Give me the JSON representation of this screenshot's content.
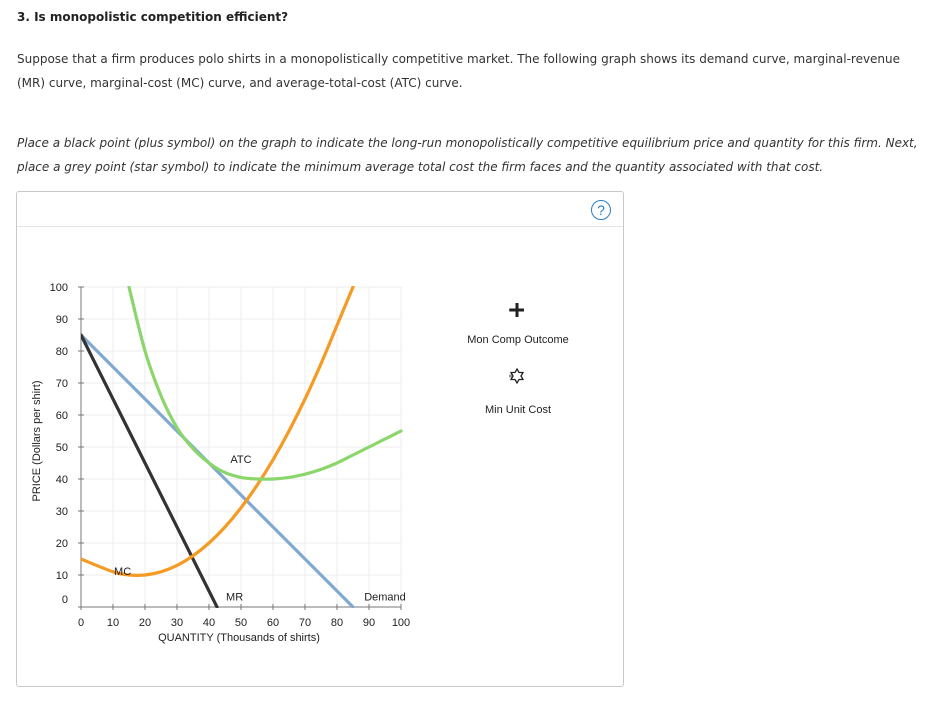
{
  "question": {
    "title": "3. Is monopolistic competition efficient?",
    "intro": "Suppose that a firm produces polo shirts in a monopolistically competitive market. The following graph shows its demand curve, marginal-revenue (MR) curve, marginal-cost (MC) curve, and average-total-cost (ATC) curve.",
    "instructions": "Place a black point (plus symbol) on the graph to indicate the long-run monopolistically competitive equilibrium price and quantity for this firm. Next, place a grey point (star symbol) to indicate the minimum average total cost the firm faces and the quantity associated with that cost."
  },
  "help_label": "?",
  "legend": {
    "items": [
      {
        "label": "Mon Comp Outcome",
        "icon": "plus-symbol-icon",
        "color": "#222222"
      },
      {
        "label": "Min Unit Cost",
        "icon": "star-symbol-icon",
        "color": "#888888"
      }
    ]
  },
  "chart_data": {
    "type": "line",
    "xlabel": "QUANTITY (Thousands of shirts)",
    "ylabel": "PRICE (Dollars per shirt)",
    "xlim": [
      0,
      100
    ],
    "ylim": [
      0,
      100
    ],
    "xticks": [
      0,
      10,
      20,
      30,
      40,
      50,
      60,
      70,
      80,
      90,
      100
    ],
    "yticks": [
      0,
      10,
      20,
      30,
      40,
      50,
      60,
      70,
      80,
      90,
      100
    ],
    "grid": true,
    "series": [
      {
        "name": "Demand",
        "color": "#7fa9cf",
        "x": [
          0,
          85
        ],
        "y": [
          85,
          0
        ]
      },
      {
        "name": "MR",
        "color": "#333333",
        "x": [
          0,
          42.5
        ],
        "y": [
          85,
          0
        ]
      },
      {
        "name": "MC",
        "color": "#f59a23",
        "x": [
          0,
          10,
          15,
          20,
          25,
          30,
          35,
          40,
          45,
          50,
          55,
          60,
          65,
          70,
          75,
          80,
          85
        ],
        "y": [
          15,
          11,
          10,
          10,
          11,
          13,
          16,
          20,
          25,
          31,
          38,
          46,
          55,
          65,
          76,
          88,
          100
        ]
      },
      {
        "name": "ATC",
        "color": "#8ad66b",
        "x": [
          15,
          20,
          25,
          30,
          35,
          40,
          45,
          50,
          55,
          60,
          65,
          70,
          75,
          80,
          85,
          90,
          95,
          100
        ],
        "y": [
          100,
          80,
          66,
          56,
          49.5,
          45,
          42,
          40.5,
          40,
          40,
          40.5,
          41.5,
          43,
          45,
          47.5,
          50,
          52.5,
          55
        ]
      }
    ],
    "labels": [
      {
        "text": "ATC",
        "x": 50,
        "y": 45
      },
      {
        "text": "MC",
        "x": 13,
        "y": 10
      },
      {
        "text": "MR",
        "x": 48,
        "y": 2
      },
      {
        "text": "Demand",
        "x": 95,
        "y": 2
      }
    ]
  }
}
